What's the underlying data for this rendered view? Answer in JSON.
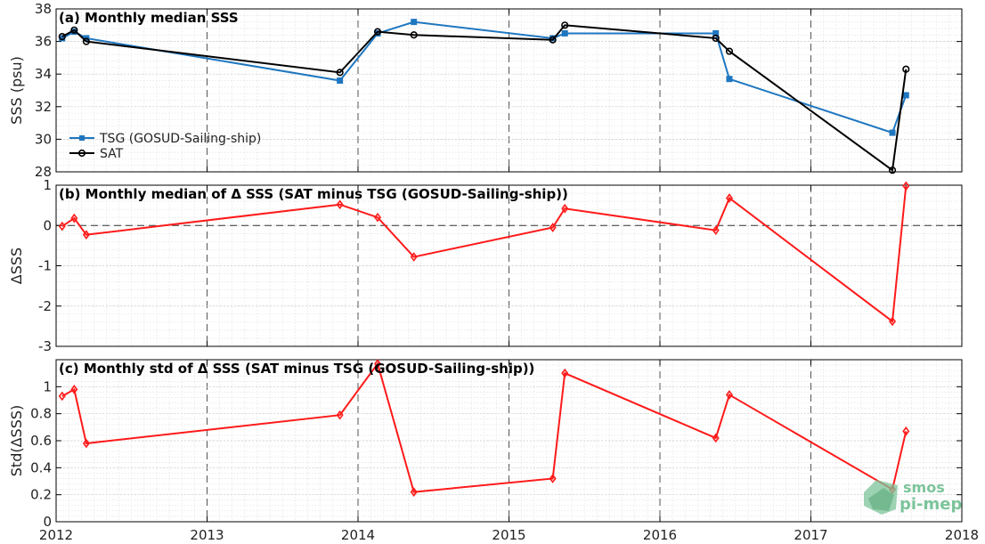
{
  "chart_data": [
    {
      "type": "line",
      "title": "(a) Monthly median SSS",
      "ylabel": "SSS (psu)",
      "xlim": [
        2012,
        2018
      ],
      "ylim": [
        28,
        38
      ],
      "yticks": [
        28,
        30,
        32,
        34,
        36,
        38
      ],
      "legend_position": "left",
      "series": [
        {
          "name": "TSG (GOSUD-Sailing-ship)",
          "color": "#1f77c0",
          "marker": "square",
          "x": [
            2012.04,
            2012.12,
            2012.2,
            2013.88,
            2014.13,
            2014.37,
            2015.29,
            2015.37,
            2016.37,
            2016.46,
            2017.54,
            2017.63
          ],
          "y": [
            36.2,
            36.6,
            36.2,
            33.6,
            36.5,
            37.2,
            36.2,
            36.5,
            36.5,
            33.7,
            30.4,
            32.7
          ]
        },
        {
          "name": "SAT",
          "color": "#000000",
          "marker": "circle",
          "x": [
            2012.04,
            2012.12,
            2012.2,
            2013.88,
            2014.13,
            2014.37,
            2015.29,
            2015.37,
            2016.37,
            2016.46,
            2017.54,
            2017.63
          ],
          "y": [
            36.3,
            36.7,
            36.0,
            34.1,
            36.6,
            36.4,
            36.1,
            37.0,
            36.2,
            35.4,
            28.1,
            34.3
          ]
        }
      ]
    },
    {
      "type": "line",
      "title": "(b) Monthly median of Δ SSS (SAT minus TSG (GOSUD-Sailing-ship))",
      "ylabel": "ΔSSS",
      "xlim": [
        2012,
        2018
      ],
      "ylim": [
        -3,
        1
      ],
      "yticks": [
        -3,
        -2,
        -1,
        0,
        1
      ],
      "zero_line": true,
      "series": [
        {
          "color": "#ff1a1a",
          "marker": "diamond",
          "x": [
            2012.04,
            2012.12,
            2012.2,
            2013.88,
            2014.13,
            2014.37,
            2015.29,
            2015.37,
            2016.37,
            2016.46,
            2017.54,
            2017.63
          ],
          "y": [
            -0.02,
            0.18,
            -0.23,
            0.52,
            0.2,
            -0.78,
            -0.05,
            0.42,
            -0.12,
            0.68,
            -2.38,
            0.98
          ]
        }
      ]
    },
    {
      "type": "line",
      "title": "(c) Monthly std of Δ SSS (SAT minus TSG (GOSUD-Sailing-ship))",
      "ylabel": "Std(ΔSSS)",
      "xlabel": "",
      "xlim": [
        2012,
        2018
      ],
      "ylim": [
        0,
        1.2
      ],
      "yticks": [
        0,
        0.2,
        0.4,
        0.6,
        0.8,
        1
      ],
      "xticks": [
        2012,
        2013,
        2014,
        2015,
        2016,
        2017,
        2018
      ],
      "series": [
        {
          "color": "#ff1a1a",
          "marker": "diamond",
          "x": [
            2012.04,
            2012.12,
            2012.2,
            2013.88,
            2014.13,
            2014.37,
            2015.29,
            2015.37,
            2016.37,
            2016.46,
            2017.54,
            2017.63
          ],
          "y": [
            0.93,
            0.98,
            0.58,
            0.79,
            1.17,
            0.22,
            0.32,
            1.1,
            0.62,
            0.94,
            0.24,
            0.67
          ]
        }
      ]
    }
  ],
  "logo": {
    "line1": "smos",
    "line2": "pi-mep",
    "color": "#7cc49a"
  }
}
